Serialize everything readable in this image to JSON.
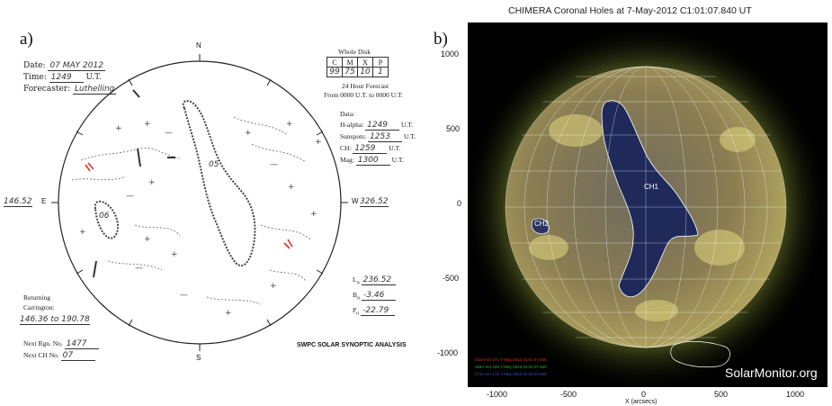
{
  "panel_a": {
    "label": "a)",
    "date_label": "Date:",
    "date_value": "07 MAY 2012",
    "time_label": "Time:",
    "time_value": "1249",
    "time_unit": "U.T.",
    "forecaster_label": "Forecaster:",
    "forecaster_value": "Luthelling",
    "whole_disk_label": "Whole Disk",
    "whole_disk_headers": [
      "C",
      "M",
      "X",
      "P"
    ],
    "whole_disk_values": [
      "99",
      "75",
      "10",
      "1"
    ],
    "forecast_line1": "24 Hour Forecast",
    "forecast_line2": "From 0000 U.T. to 0000 U.T.",
    "data_label": "Data:",
    "data_rows": [
      {
        "label": "H-alpha:",
        "value": "1249",
        "unit": "U.T."
      },
      {
        "label": "Sunspots:",
        "value": "1253",
        "unit": "U.T."
      },
      {
        "label": "CH:",
        "value": "1259",
        "unit": "U.T."
      },
      {
        "label": "Mag:",
        "value": "1300",
        "unit": "U.T."
      }
    ],
    "compass_n": "N",
    "compass_s": "S",
    "compass_e": "E",
    "compass_w": "W",
    "east_value": "146.52",
    "west_value": "326.52",
    "ch_label_1": "05",
    "ch_label_2": "06",
    "l0_label": "L",
    "l0_value": "236.52",
    "b0_label": "B",
    "b0_value": "-3.46",
    "p0_label": "P",
    "p0_value": "-22.79",
    "returning_label": "Returning",
    "carrington_label": "Carrington:",
    "carrington_range": "146.36 to 190.78",
    "next_rgn_label": "Next Rgn. No.",
    "next_rgn_value": "1477",
    "next_ch_label": "Next CH No.",
    "next_ch_value": "07",
    "footer": "SWPC SOLAR SYNOPTIC ANALYSIS"
  },
  "panel_b": {
    "label": "b)",
    "title": "CHIMERA Coronal Holes at  7-May-2012 C1:01:07.840 UT",
    "y_ticks": [
      "1000",
      "500",
      "0",
      "-500",
      "-1000"
    ],
    "x_ticks": [
      "-1000",
      "-500",
      "0",
      "500",
      "1000"
    ],
    "x_label": "X (arcsecs)",
    "ch_labels": [
      "CH1",
      "CH2"
    ],
    "legend": [
      {
        "text": "211A AIA 171 7-May-2012 01:01:07.840",
        "color": "#d23a2a"
      },
      {
        "text": "193A AIA 193 7-May-2012 01:01:07.840",
        "color": "#3fae3f"
      },
      {
        "text": "171A AIA 171 7-May-2012 01:01:07.840",
        "color": "#3a56c8"
      }
    ],
    "watermark": "SolarMonitor.org"
  }
}
